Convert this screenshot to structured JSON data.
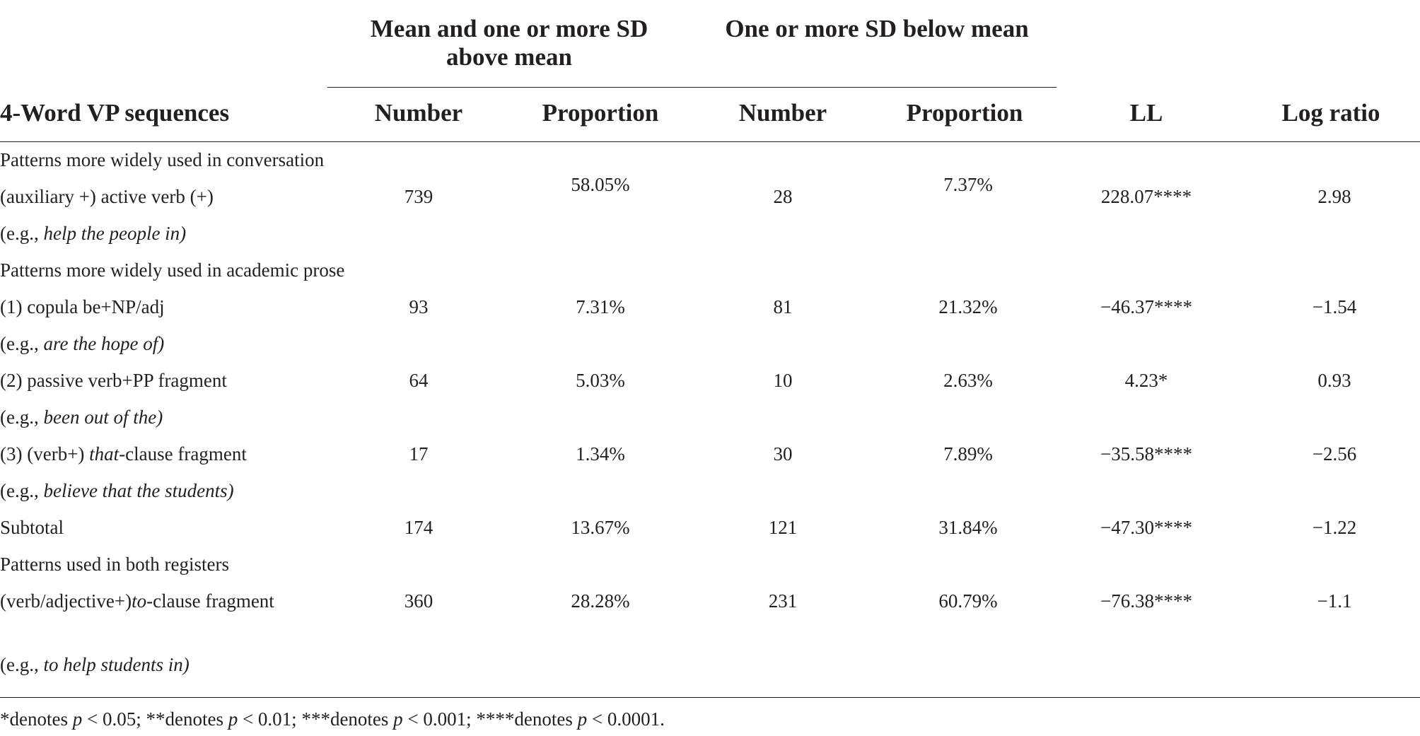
{
  "table": {
    "group_headers": {
      "above": "Mean and one or more SD above mean",
      "below": "One or more SD below mean"
    },
    "columns": {
      "label": "4-Word VP sequences",
      "above_number": "Number",
      "above_proportion": "Proportion",
      "below_number": "Number",
      "below_proportion": "Proportion",
      "ll": "LL",
      "log_ratio": "Log ratio"
    },
    "sections": {
      "conversation": "Patterns more widely used in conversation",
      "academic": "Patterns more widely used in academic prose",
      "both": "Patterns used in both registers"
    },
    "rows": {
      "active_verb": {
        "label": "(auxiliary +) active verb (+)",
        "example_prefix": "(e.g., ",
        "example": "help the people in)",
        "above_number": "739",
        "above_proportion": "58.05%",
        "below_number": "28",
        "below_proportion": "7.37%",
        "ll": "228.07****",
        "log_ratio": "2.98"
      },
      "copula": {
        "label": "(1) copula be+NP/adj",
        "example_prefix": "(e.g., ",
        "example": "are the hope of)",
        "above_number": "93",
        "above_proportion": "7.31%",
        "below_number": "81",
        "below_proportion": "21.32%",
        "ll": "−46.37****",
        "log_ratio": "−1.54"
      },
      "passive": {
        "label": "(2) passive verb+PP fragment",
        "example_prefix": "(e.g., ",
        "example": "been out of the)",
        "above_number": "64",
        "above_proportion": "5.03%",
        "below_number": "10",
        "below_proportion": "2.63%",
        "ll": "4.23*",
        "log_ratio": "0.93"
      },
      "that_clause": {
        "label_prefix": "(3) (verb+) ",
        "label_italic": "that",
        "label_suffix": "-clause fragment",
        "example_prefix": "(e.g., ",
        "example": "believe that the students)",
        "above_number": "17",
        "above_proportion": "1.34%",
        "below_number": "30",
        "below_proportion": "7.89%",
        "ll": "−35.58****",
        "log_ratio": "−2.56"
      },
      "subtotal": {
        "label": "Subtotal",
        "above_number": "174",
        "above_proportion": "13.67%",
        "below_number": "121",
        "below_proportion": "31.84%",
        "ll": "−47.30****",
        "log_ratio": "−1.22"
      },
      "to_clause": {
        "label_prefix": "(verb/adjective+)",
        "label_italic": "to",
        "label_suffix": "-clause fragment",
        "example_prefix": "(e.g., ",
        "example": "to help students in)",
        "above_number": "360",
        "above_proportion": "28.28%",
        "below_number": "231",
        "below_proportion": "60.79%",
        "ll": "−76.38****",
        "log_ratio": "−1.1"
      }
    },
    "footnote": {
      "p1": "*denotes ",
      "p1_var": "p",
      "p1_val": " < 0.05; ",
      "p2": "**denotes ",
      "p2_var": "p",
      "p2_val": " < 0.01; ",
      "p3": "***denotes ",
      "p3_var": "p",
      "p3_val": " < 0.001; ",
      "p4": "****denotes ",
      "p4_var": "p",
      "p4_val": " < 0.0001."
    }
  }
}
